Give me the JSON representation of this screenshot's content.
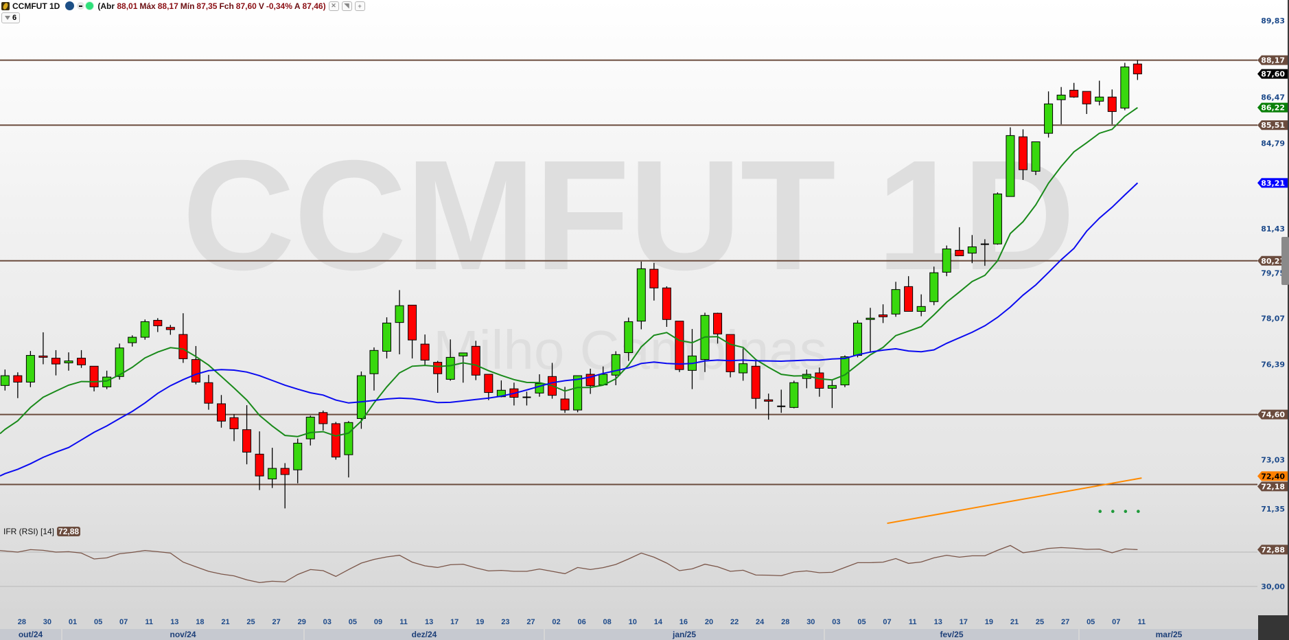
{
  "header": {
    "symbol": "CCMFUT 1D",
    "open_label": "(Abr",
    "open": "88,01",
    "high_label": "Máx",
    "high": "88,17",
    "low_label": "Mín",
    "low": "87,35",
    "close_label": "Fch",
    "close": "87,60",
    "var_label": "V",
    "var": "-0,34%",
    "avg_label": "A",
    "avg": "87,46",
    "close_paren": ")",
    "buttons": [
      "settings-icon",
      "arrow-icon",
      "plus-icon"
    ],
    "interval_value": "6"
  },
  "watermark": {
    "title": "CCMFUT 1D",
    "subtitle": "Milho Campinas"
  },
  "colors": {
    "up": "#38d80e",
    "down": "#ff0000",
    "ma_short": "#198a1a",
    "ma_long": "#0a0af0",
    "hline": "#6b4c3e",
    "trend": "#ff8a00",
    "dots": "#1f9a3a",
    "rsi": "#7a5548",
    "axis_text": "#1d4a8a"
  },
  "price_axis": {
    "labels": [
      "89,83",
      "86,47",
      "84,79",
      "81,43",
      "79,75",
      "78,07",
      "76,39",
      "73,03",
      "71,35"
    ],
    "tags": [
      {
        "text": "88,17",
        "color": "#6b4c3e",
        "text_color": "#ffffff"
      },
      {
        "text": "87,60",
        "color": "#000000",
        "text_color": "#ffffff"
      },
      {
        "text": "86,22",
        "color": "#0a800a",
        "text_color": "#ffffff"
      },
      {
        "text": "85,51",
        "color": "#6b4c3e",
        "text_color": "#ffffff"
      },
      {
        "text": "83,21",
        "color": "#0000ff",
        "text_color": "#ffffff"
      },
      {
        "text": "80,21",
        "color": "#6b4c3e",
        "text_color": "#ffffff"
      },
      {
        "text": "74,60",
        "color": "#6b4c3e",
        "text_color": "#ffffff"
      },
      {
        "text": "72,18",
        "color": "#6b4c3e",
        "text_color": "#ffffff"
      },
      {
        "text": "72,40",
        "color": "#ff8000",
        "text_color": "#000000"
      }
    ]
  },
  "chart_data": {
    "type": "candlestick",
    "scale": "log",
    "ylim": [
      70.5,
      90.7
    ],
    "candles": [
      [
        75.63,
        76.2,
        75.45,
        75.98
      ],
      [
        75.98,
        76.1,
        75.18,
        75.75
      ],
      [
        75.75,
        76.87,
        75.57,
        76.71
      ],
      [
        76.69,
        77.55,
        76.39,
        76.64
      ],
      [
        76.61,
        76.9,
        75.99,
        76.4
      ],
      [
        76.44,
        76.82,
        76.16,
        76.51
      ],
      [
        76.61,
        76.9,
        76.26,
        76.37
      ],
      [
        76.32,
        76.32,
        75.42,
        75.58
      ],
      [
        75.58,
        76.16,
        75.5,
        75.93
      ],
      [
        75.95,
        77.14,
        75.84,
        76.98
      ],
      [
        77.17,
        77.44,
        77.03,
        77.37
      ],
      [
        77.37,
        78.02,
        77.28,
        77.94
      ],
      [
        77.99,
        78.07,
        77.56,
        77.79
      ],
      [
        77.73,
        77.82,
        77.46,
        77.65
      ],
      [
        77.47,
        78.25,
        76.44,
        76.59
      ],
      [
        76.56,
        77.05,
        75.67,
        75.75
      ],
      [
        75.73,
        76.01,
        74.77,
        75.0
      ],
      [
        74.98,
        75.29,
        74.14,
        74.37
      ],
      [
        74.49,
        74.61,
        73.67,
        74.1
      ],
      [
        74.07,
        74.93,
        72.87,
        73.29
      ],
      [
        73.22,
        74.01,
        71.99,
        72.47
      ],
      [
        72.37,
        73.44,
        72.06,
        72.73
      ],
      [
        72.73,
        72.91,
        71.37,
        72.52
      ],
      [
        72.68,
        73.76,
        72.22,
        73.6
      ],
      [
        73.75,
        74.56,
        73.52,
        74.51
      ],
      [
        74.67,
        74.74,
        74.04,
        74.28
      ],
      [
        74.28,
        74.34,
        73.03,
        73.12
      ],
      [
        73.2,
        74.37,
        72.42,
        74.32
      ],
      [
        74.46,
        76.13,
        74.1,
        75.98
      ],
      [
        76.05,
        77.0,
        75.45,
        76.89
      ],
      [
        76.86,
        78.1,
        76.6,
        77.89
      ],
      [
        77.91,
        79.11,
        76.75,
        78.53
      ],
      [
        78.55,
        78.55,
        76.6,
        77.27
      ],
      [
        77.12,
        77.47,
        76.35,
        76.54
      ],
      [
        76.46,
        76.51,
        75.37,
        76.05
      ],
      [
        75.85,
        77.29,
        75.8,
        76.64
      ],
      [
        76.69,
        76.8,
        75.73,
        76.8
      ],
      [
        77.04,
        77.24,
        75.82,
        76.0
      ],
      [
        76.03,
        76.03,
        75.11,
        75.38
      ],
      [
        75.23,
        75.81,
        75.21,
        75.46
      ],
      [
        75.51,
        75.73,
        74.92,
        75.21
      ],
      [
        75.21,
        75.41,
        74.92,
        75.18
      ],
      [
        75.36,
        76.03,
        75.23,
        75.7
      ],
      [
        75.95,
        76.44,
        75.16,
        75.28
      ],
      [
        75.15,
        75.58,
        74.66,
        74.76
      ],
      [
        74.76,
        75.98,
        74.68,
        75.98
      ],
      [
        76.03,
        76.23,
        75.33,
        75.62
      ],
      [
        75.65,
        76.31,
        75.65,
        76.03
      ],
      [
        76.0,
        76.86,
        75.64,
        76.74
      ],
      [
        76.81,
        78.09,
        76.51,
        77.94
      ],
      [
        77.96,
        80.18,
        77.66,
        79.91
      ],
      [
        79.89,
        80.13,
        78.72,
        79.19
      ],
      [
        79.19,
        79.25,
        77.75,
        78.02
      ],
      [
        77.96,
        77.96,
        76.11,
        76.2
      ],
      [
        76.17,
        77.67,
        75.5,
        76.69
      ],
      [
        76.56,
        78.27,
        76.11,
        78.17
      ],
      [
        78.25,
        78.27,
        77.14,
        77.49
      ],
      [
        77.47,
        77.47,
        75.92,
        76.12
      ],
      [
        76.08,
        76.96,
        75.8,
        76.41
      ],
      [
        76.32,
        76.56,
        74.8,
        75.17
      ],
      [
        75.12,
        75.34,
        74.42,
        75.07
      ],
      [
        74.89,
        75.48,
        74.66,
        74.89
      ],
      [
        74.85,
        75.8,
        74.82,
        75.73
      ],
      [
        75.88,
        76.2,
        75.53,
        76.03
      ],
      [
        76.08,
        76.27,
        75.23,
        75.53
      ],
      [
        75.53,
        75.83,
        74.83,
        75.63
      ],
      [
        75.65,
        76.71,
        75.57,
        76.66
      ],
      [
        76.71,
        77.99,
        76.64,
        77.89
      ],
      [
        78.02,
        78.45,
        76.81,
        78.07
      ],
      [
        78.19,
        78.58,
        77.89,
        78.12
      ],
      [
        78.22,
        79.42,
        78.12,
        79.13
      ],
      [
        79.24,
        79.63,
        78.32,
        78.32
      ],
      [
        78.32,
        78.95,
        78.14,
        78.5
      ],
      [
        78.68,
        79.99,
        78.55,
        79.76
      ],
      [
        79.78,
        80.79,
        79.63,
        80.66
      ],
      [
        80.61,
        81.49,
        80.4,
        80.4
      ],
      [
        80.5,
        81.19,
        80.12,
        80.74
      ],
      [
        80.84,
        81.03,
        80.02,
        80.84
      ],
      [
        80.85,
        82.84,
        80.82,
        82.78
      ],
      [
        82.68,
        85.42,
        82.68,
        85.09
      ],
      [
        85.04,
        85.34,
        83.33,
        83.73
      ],
      [
        83.67,
        84.84,
        83.52,
        84.84
      ],
      [
        85.18,
        86.88,
        85.01,
        86.37
      ],
      [
        86.54,
        87.06,
        85.54,
        86.73
      ],
      [
        86.93,
        87.23,
        86.62,
        86.65
      ],
      [
        86.88,
        86.88,
        85.96,
        86.37
      ],
      [
        86.48,
        87.32,
        86.31,
        86.65
      ],
      [
        86.65,
        86.96,
        85.54,
        86.06
      ],
      [
        86.2,
        88.06,
        86.11,
        87.89
      ],
      [
        88.01,
        88.17,
        87.35,
        87.6
      ]
    ],
    "ma_short": [
      74.08,
      74.38,
      74.85,
      75.21,
      75.43,
      75.64,
      75.77,
      75.76,
      75.79,
      76.01,
      76.28,
      76.62,
      76.83,
      76.99,
      76.94,
      76.67,
      76.36,
      75.95,
      75.54,
      75.11,
      74.57,
      74.2,
      73.87,
      73.83,
      73.97,
      74.0,
      73.85,
      73.95,
      74.37,
      75.01,
      75.58,
      76.08,
      76.32,
      76.35,
      76.31,
      76.34,
      76.44,
      76.36,
      76.16,
      75.99,
      75.84,
      75.74,
      75.73,
      75.62,
      75.43,
      75.56,
      75.56,
      75.64,
      75.87,
      76.36,
      77.02,
      77.44,
      77.54,
      77.25,
      77.17,
      77.38,
      77.39,
      77.11,
      77.0,
      76.56,
      76.28,
      76.03,
      75.97,
      75.98,
      75.87,
      75.83,
      76.01,
      76.37,
      76.73,
      77.0,
      77.43,
      77.59,
      77.76,
      78.19,
      78.66,
      79.04,
      79.43,
      79.66,
      80.21,
      81.25,
      81.7,
      82.35,
      83.2,
      83.86,
      84.44,
      84.8,
      85.18,
      85.34,
      85.86,
      86.22
    ],
    "ma_long": [
      72.55,
      72.7,
      72.89,
      73.11,
      73.29,
      73.45,
      73.71,
      73.98,
      74.2,
      74.46,
      74.71,
      75.01,
      75.35,
      75.62,
      75.84,
      76.03,
      76.16,
      76.2,
      76.18,
      76.11,
      75.98,
      75.81,
      75.64,
      75.5,
      75.37,
      75.29,
      75.11,
      75.01,
      75.05,
      75.1,
      75.15,
      75.18,
      75.16,
      75.1,
      75.02,
      75.03,
      75.08,
      75.13,
      75.18,
      75.25,
      75.35,
      75.47,
      75.6,
      75.73,
      75.8,
      75.85,
      75.93,
      76.06,
      76.16,
      76.26,
      76.42,
      76.47,
      76.42,
      76.4,
      76.42,
      76.51,
      76.54,
      76.52,
      76.54,
      76.52,
      76.51,
      76.5,
      76.52,
      76.54,
      76.54,
      76.58,
      76.6,
      76.73,
      76.83,
      76.9,
      76.95,
      76.87,
      76.84,
      76.91,
      77.15,
      77.35,
      77.55,
      77.79,
      78.1,
      78.48,
      78.92,
      79.3,
      79.77,
      80.25,
      80.68,
      81.34,
      81.84,
      82.26,
      82.74,
      83.21
    ],
    "trendline": {
      "start_index": 69,
      "start_value": 70.87,
      "end_index": 89,
      "end_value": 72.4
    },
    "dots": {
      "indices": [
        86,
        87,
        88,
        89
      ],
      "value": 71.27
    },
    "hlines": [
      88.17,
      85.51,
      80.21,
      74.6,
      72.18
    ]
  },
  "rsi": {
    "label": "IFR (RSI) [14]",
    "value": "72,88",
    "levels": [
      70,
      30
    ],
    "level_label": "30,00",
    "values": [
      71.3,
      70.0,
      72.9,
      72.1,
      70.0,
      70.5,
      68.9,
      62.0,
      63.3,
      68.1,
      69.7,
      71.9,
      70.5,
      68.9,
      58.3,
      52.9,
      47.6,
      44.4,
      42.3,
      37.7,
      34.5,
      36.1,
      35.3,
      43.9,
      49.7,
      48.4,
      41.7,
      49.7,
      57.2,
      61.5,
      64.4,
      66.3,
      58.3,
      54.0,
      52.1,
      55.3,
      55.9,
      51.6,
      48.1,
      48.7,
      47.6,
      47.6,
      50.3,
      47.6,
      44.9,
      52.1,
      49.7,
      51.9,
      55.6,
      62.0,
      68.9,
      64.1,
      57.2,
      48.4,
      50.5,
      55.9,
      52.9,
      47.6,
      48.9,
      43.3,
      43.1,
      42.5,
      46.8,
      48.1,
      46.0,
      46.5,
      52.1,
      57.7,
      57.7,
      58.3,
      62.5,
      56.9,
      58.5,
      63.3,
      66.3,
      64.1,
      65.7,
      65.7,
      72.1,
      77.7,
      69.2,
      71.3,
      74.3,
      75.3,
      74.5,
      73.2,
      73.5,
      69.2,
      73.7,
      72.88
    ]
  },
  "x_axis": {
    "day_labels": [
      "28",
      "30",
      "01",
      "05",
      "07",
      "11",
      "13",
      "18",
      "21",
      "25",
      "27",
      "29",
      "03",
      "05",
      "09",
      "11",
      "13",
      "17",
      "19",
      "23",
      "27",
      "02",
      "06",
      "08",
      "10",
      "14",
      "16",
      "20",
      "22",
      "24",
      "28",
      "30",
      "03",
      "05",
      "07",
      "11",
      "13",
      "17",
      "19",
      "21",
      "25",
      "27",
      "05",
      "07",
      "11"
    ],
    "months": [
      "out/24",
      "nov/24",
      "dez/24",
      "jan/25",
      "fev/25",
      "mar/25"
    ]
  }
}
